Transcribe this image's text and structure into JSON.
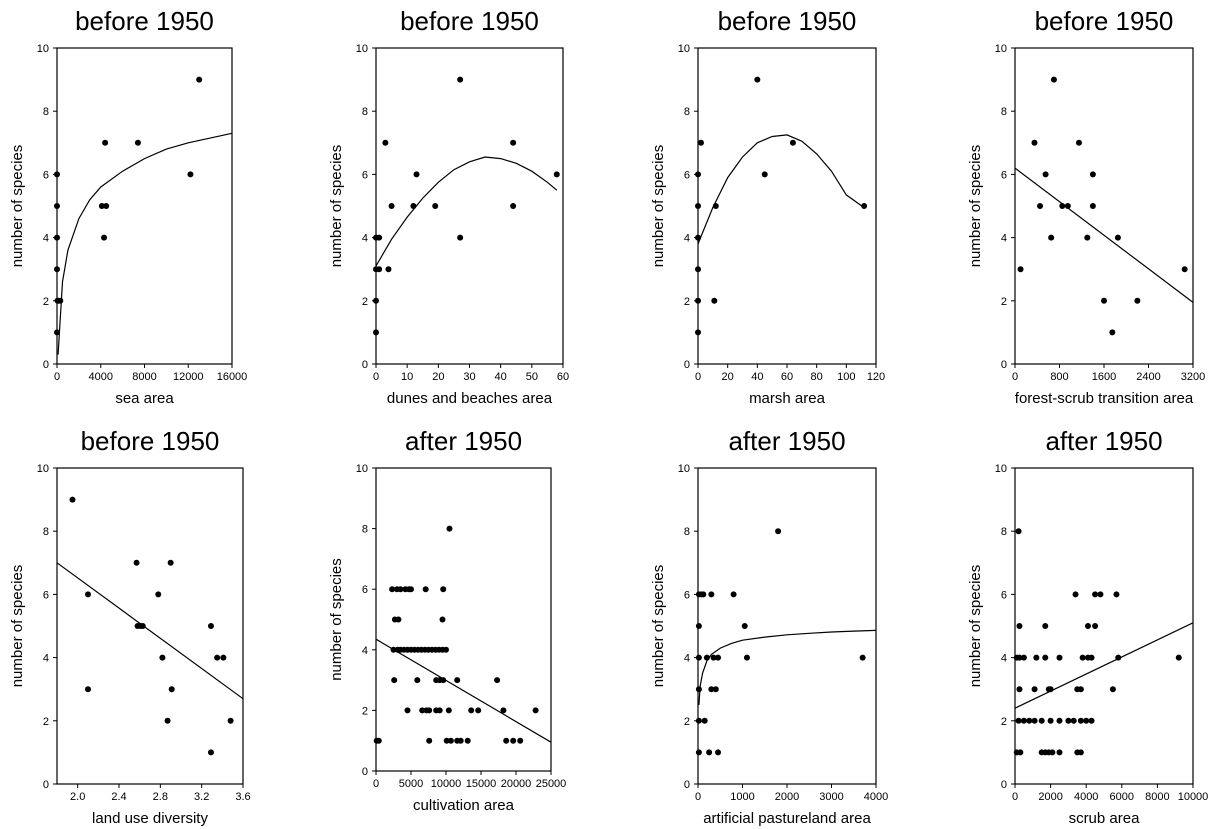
{
  "chart_data": [
    {
      "type": "scatter",
      "title": "before 1950",
      "xlabel": "sea area",
      "ylabel": "number of species",
      "xlim": [
        0,
        16000
      ],
      "ylim": [
        0,
        10
      ],
      "xticks": [
        "0",
        "4000",
        "8000",
        "12000",
        "16000"
      ],
      "xtick_values": [
        0,
        4000,
        8000,
        12000,
        16000
      ],
      "yticks": [
        "0",
        "2",
        "4",
        "6",
        "8",
        "10"
      ],
      "ytick_values": [
        0,
        2,
        4,
        6,
        8,
        10
      ],
      "points": [
        [
          0,
          1
        ],
        [
          50,
          2
        ],
        [
          150,
          2
        ],
        [
          300,
          2
        ],
        [
          0,
          3
        ],
        [
          0,
          4
        ],
        [
          0,
          5
        ],
        [
          0,
          6
        ],
        [
          4100,
          5
        ],
        [
          4500,
          5
        ],
        [
          4300,
          4
        ],
        [
          4400,
          7
        ],
        [
          7400,
          7
        ],
        [
          12200,
          6
        ],
        [
          13000,
          9
        ]
      ],
      "fit": {
        "type": "curve",
        "x": [
          100,
          500,
          1000,
          2000,
          3000,
          4000,
          6000,
          8000,
          10000,
          12000,
          14000,
          16000
        ],
        "y": [
          0.3,
          2.6,
          3.6,
          4.6,
          5.2,
          5.6,
          6.1,
          6.5,
          6.8,
          7.0,
          7.15,
          7.3
        ]
      }
    },
    {
      "type": "scatter",
      "title": "before 1950",
      "xlabel": "dunes and beaches area",
      "ylabel": "number of species",
      "xlim": [
        0,
        60
      ],
      "ylim": [
        0,
        10
      ],
      "xticks": [
        "0",
        "10",
        "20",
        "30",
        "40",
        "50",
        "60"
      ],
      "xtick_values": [
        0,
        10,
        20,
        30,
        40,
        50,
        60
      ],
      "yticks": [
        "0",
        "2",
        "4",
        "6",
        "8",
        "10"
      ],
      "ytick_values": [
        0,
        2,
        4,
        6,
        8,
        10
      ],
      "points": [
        [
          0,
          1
        ],
        [
          0,
          2
        ],
        [
          0,
          3
        ],
        [
          0,
          4
        ],
        [
          1,
          3
        ],
        [
          1,
          4
        ],
        [
          3,
          7
        ],
        [
          4,
          3
        ],
        [
          5,
          5
        ],
        [
          12,
          5
        ],
        [
          13,
          6
        ],
        [
          19,
          5
        ],
        [
          27,
          9
        ],
        [
          27,
          4
        ],
        [
          44,
          7
        ],
        [
          44,
          5
        ],
        [
          58,
          6
        ]
      ],
      "fit": {
        "type": "curve",
        "x": [
          0,
          5,
          10,
          15,
          20,
          25,
          30,
          35,
          40,
          45,
          50,
          55,
          58
        ],
        "y": [
          3.1,
          3.95,
          4.65,
          5.25,
          5.75,
          6.15,
          6.4,
          6.55,
          6.5,
          6.35,
          6.1,
          5.75,
          5.5
        ]
      }
    },
    {
      "type": "scatter",
      "title": "before 1950",
      "xlabel": "marsh area",
      "ylabel": "number of species",
      "xlim": [
        0,
        120
      ],
      "ylim": [
        0,
        10
      ],
      "xticks": [
        "0",
        "20",
        "40",
        "60",
        "80",
        "100",
        "120"
      ],
      "xtick_values": [
        0,
        20,
        40,
        60,
        80,
        100,
        120
      ],
      "yticks": [
        "0",
        "2",
        "4",
        "6",
        "8",
        "10"
      ],
      "ytick_values": [
        0,
        2,
        4,
        6,
        8,
        10
      ],
      "points": [
        [
          0,
          1
        ],
        [
          0,
          2
        ],
        [
          0,
          3
        ],
        [
          0,
          4
        ],
        [
          0,
          5
        ],
        [
          0,
          6
        ],
        [
          2,
          7
        ],
        [
          11,
          2
        ],
        [
          12,
          5
        ],
        [
          40,
          9
        ],
        [
          45,
          6
        ],
        [
          64,
          7
        ],
        [
          112,
          5
        ]
      ],
      "fit": {
        "type": "curve",
        "x": [
          0,
          10,
          20,
          30,
          40,
          50,
          60,
          70,
          80,
          90,
          100,
          112
        ],
        "y": [
          3.8,
          4.95,
          5.9,
          6.55,
          7.0,
          7.2,
          7.25,
          7.05,
          6.65,
          6.1,
          5.35,
          4.95
        ]
      }
    },
    {
      "type": "scatter",
      "title": "before 1950",
      "xlabel": "forest-scrub transition area",
      "ylabel": "number of species",
      "xlim": [
        0,
        3200
      ],
      "ylim": [
        0,
        10
      ],
      "xticks": [
        "0",
        "800",
        "1600",
        "2400",
        "3200"
      ],
      "xtick_values": [
        0,
        800,
        1600,
        2400,
        3200
      ],
      "yticks": [
        "0",
        "2",
        "4",
        "6",
        "8",
        "10"
      ],
      "ytick_values": [
        0,
        2,
        4,
        6,
        8,
        10
      ],
      "points": [
        [
          100,
          3
        ],
        [
          350,
          7
        ],
        [
          450,
          5
        ],
        [
          550,
          6
        ],
        [
          650,
          4
        ],
        [
          700,
          9
        ],
        [
          850,
          5
        ],
        [
          950,
          5
        ],
        [
          1150,
          7
        ],
        [
          1300,
          4
        ],
        [
          1400,
          6
        ],
        [
          1400,
          5
        ],
        [
          1600,
          2
        ],
        [
          1750,
          1
        ],
        [
          1850,
          4
        ],
        [
          2200,
          2
        ],
        [
          3050,
          3
        ]
      ],
      "fit": {
        "type": "line",
        "x": [
          0,
          3200
        ],
        "y": [
          6.2,
          1.95
        ]
      }
    },
    {
      "type": "scatter",
      "title": "before 1950",
      "xlabel": "land use diversity",
      "ylabel": "number of species",
      "xlim": [
        1.8,
        3.6
      ],
      "ylim": [
        0,
        10
      ],
      "xticks": [
        "2.0",
        "2.4",
        "2.8",
        "3.2",
        "3.6"
      ],
      "xtick_values": [
        2.0,
        2.4,
        2.8,
        3.2,
        3.6
      ],
      "yticks": [
        "0",
        "2",
        "4",
        "6",
        "8",
        "10"
      ],
      "ytick_values": [
        0,
        2,
        4,
        6,
        8,
        10
      ],
      "points": [
        [
          1.95,
          9
        ],
        [
          2.1,
          6
        ],
        [
          2.1,
          3
        ],
        [
          2.57,
          7
        ],
        [
          2.58,
          5
        ],
        [
          2.61,
          5
        ],
        [
          2.63,
          5
        ],
        [
          2.78,
          6
        ],
        [
          2.82,
          4
        ],
        [
          2.87,
          2
        ],
        [
          2.9,
          7
        ],
        [
          2.91,
          3
        ],
        [
          3.29,
          5
        ],
        [
          3.29,
          1
        ],
        [
          3.35,
          4
        ],
        [
          3.41,
          4
        ],
        [
          3.48,
          2
        ]
      ],
      "fit": {
        "type": "line",
        "x": [
          1.8,
          3.6
        ],
        "y": [
          7.0,
          2.7
        ]
      }
    },
    {
      "type": "scatter",
      "title": "after 1950",
      "xlabel": "cultivation area",
      "ylabel": "number of species",
      "xlim": [
        0,
        25000
      ],
      "ylim": [
        0,
        10
      ],
      "xticks": [
        "0",
        "5000",
        "10000",
        "15000",
        "20000",
        "25000"
      ],
      "xtick_values": [
        0,
        5000,
        10000,
        15000,
        20000,
        25000
      ],
      "yticks": [
        "0",
        "2",
        "4",
        "6",
        "8",
        "10"
      ],
      "ytick_values": [
        0,
        2,
        4,
        6,
        8,
        10
      ],
      "points": [
        [
          100,
          1
        ],
        [
          400,
          1
        ],
        [
          2300,
          6
        ],
        [
          3000,
          6
        ],
        [
          3500,
          6
        ],
        [
          4200,
          6
        ],
        [
          4700,
          6
        ],
        [
          5000,
          6
        ],
        [
          7100,
          6
        ],
        [
          9600,
          6
        ],
        [
          2700,
          5
        ],
        [
          3200,
          5
        ],
        [
          9500,
          5
        ],
        [
          2500,
          4
        ],
        [
          3100,
          4
        ],
        [
          3500,
          4
        ],
        [
          4000,
          4
        ],
        [
          4500,
          4
        ],
        [
          5000,
          4
        ],
        [
          5500,
          4
        ],
        [
          6000,
          4
        ],
        [
          6500,
          4
        ],
        [
          7000,
          4
        ],
        [
          7500,
          4
        ],
        [
          8000,
          4
        ],
        [
          8500,
          4
        ],
        [
          9000,
          4
        ],
        [
          9500,
          4
        ],
        [
          10000,
          4
        ],
        [
          2600,
          3
        ],
        [
          5900,
          3
        ],
        [
          8600,
          3
        ],
        [
          9100,
          3
        ],
        [
          9600,
          3
        ],
        [
          11600,
          3
        ],
        [
          17300,
          3
        ],
        [
          4500,
          2
        ],
        [
          6600,
          2
        ],
        [
          7200,
          2
        ],
        [
          7600,
          2
        ],
        [
          8600,
          2
        ],
        [
          9100,
          2
        ],
        [
          10400,
          2
        ],
        [
          13600,
          2
        ],
        [
          14600,
          2
        ],
        [
          18200,
          2
        ],
        [
          22800,
          2
        ],
        [
          7600,
          1
        ],
        [
          10100,
          1
        ],
        [
          10700,
          1
        ],
        [
          11600,
          1
        ],
        [
          12100,
          1
        ],
        [
          13100,
          1
        ],
        [
          18600,
          1
        ],
        [
          19600,
          1
        ],
        [
          20600,
          1
        ],
        [
          10500,
          8
        ]
      ],
      "fit": {
        "type": "line",
        "x": [
          0,
          25000
        ],
        "y": [
          4.35,
          0.95
        ]
      }
    },
    {
      "type": "scatter",
      "title": "after 1950",
      "xlabel": "artificial pastureland area",
      "ylabel": "number of species",
      "xlim": [
        0,
        4000
      ],
      "ylim": [
        0,
        10
      ],
      "xticks": [
        "0",
        "1000",
        "2000",
        "3000",
        "4000"
      ],
      "xtick_values": [
        0,
        1000,
        2000,
        3000,
        4000
      ],
      "yticks": [
        "0",
        "2",
        "4",
        "6",
        "8",
        "10"
      ],
      "ytick_values": [
        0,
        2,
        4,
        6,
        8,
        10
      ],
      "points": [
        [
          20,
          1
        ],
        [
          20,
          2
        ],
        [
          20,
          3
        ],
        [
          20,
          4
        ],
        [
          20,
          5
        ],
        [
          20,
          6
        ],
        [
          80,
          6
        ],
        [
          120,
          6
        ],
        [
          150,
          2
        ],
        [
          200,
          4
        ],
        [
          250,
          1
        ],
        [
          300,
          6
        ],
        [
          300,
          3
        ],
        [
          350,
          4
        ],
        [
          400,
          3
        ],
        [
          450,
          4
        ],
        [
          450,
          1
        ],
        [
          800,
          6
        ],
        [
          1050,
          5
        ],
        [
          1100,
          4
        ],
        [
          1800,
          8
        ],
        [
          3700,
          4
        ]
      ],
      "fit": {
        "type": "curve",
        "x": [
          20,
          50,
          100,
          200,
          300,
          500,
          750,
          1000,
          1500,
          2000,
          2500,
          3000,
          3500,
          4000
        ],
        "y": [
          2.5,
          3.1,
          3.5,
          3.9,
          4.1,
          4.3,
          4.45,
          4.55,
          4.65,
          4.72,
          4.77,
          4.81,
          4.84,
          4.86
        ]
      }
    },
    {
      "type": "scatter",
      "title": "after 1950",
      "xlabel": "scrub area",
      "ylabel": "number of species",
      "xlim": [
        0,
        10000
      ],
      "ylim": [
        0,
        10
      ],
      "xticks": [
        "0",
        "2000",
        "4000",
        "6000",
        "8000",
        "10000"
      ],
      "xtick_values": [
        0,
        2000,
        4000,
        6000,
        8000,
        10000
      ],
      "yticks": [
        "0",
        "2",
        "4",
        "6",
        "8",
        "10"
      ],
      "ytick_values": [
        0,
        2,
        4,
        6,
        8,
        10
      ],
      "points": [
        [
          200,
          8
        ],
        [
          3400,
          6
        ],
        [
          4500,
          6
        ],
        [
          4800,
          6
        ],
        [
          5700,
          6
        ],
        [
          250,
          5
        ],
        [
          1700,
          5
        ],
        [
          4100,
          5
        ],
        [
          4500,
          5
        ],
        [
          100,
          4
        ],
        [
          250,
          4
        ],
        [
          500,
          4
        ],
        [
          1200,
          4
        ],
        [
          1700,
          4
        ],
        [
          2500,
          4
        ],
        [
          3800,
          4
        ],
        [
          4100,
          4
        ],
        [
          4300,
          4
        ],
        [
          5800,
          4
        ],
        [
          9200,
          4
        ],
        [
          250,
          3
        ],
        [
          1100,
          3
        ],
        [
          1900,
          3
        ],
        [
          2000,
          3
        ],
        [
          3500,
          3
        ],
        [
          3700,
          3
        ],
        [
          5500,
          3
        ],
        [
          200,
          2
        ],
        [
          500,
          2
        ],
        [
          800,
          2
        ],
        [
          1100,
          2
        ],
        [
          1500,
          2
        ],
        [
          2000,
          2
        ],
        [
          2500,
          2
        ],
        [
          3000,
          2
        ],
        [
          3300,
          2
        ],
        [
          3700,
          2
        ],
        [
          4000,
          2
        ],
        [
          4300,
          2
        ],
        [
          100,
          1
        ],
        [
          300,
          1
        ],
        [
          1500,
          1
        ],
        [
          1700,
          1
        ],
        [
          1900,
          1
        ],
        [
          2100,
          1
        ],
        [
          2500,
          1
        ],
        [
          3500,
          1
        ],
        [
          3700,
          1
        ]
      ],
      "fit": {
        "type": "line",
        "x": [
          0,
          10000
        ],
        "y": [
          2.4,
          5.1
        ]
      }
    }
  ]
}
